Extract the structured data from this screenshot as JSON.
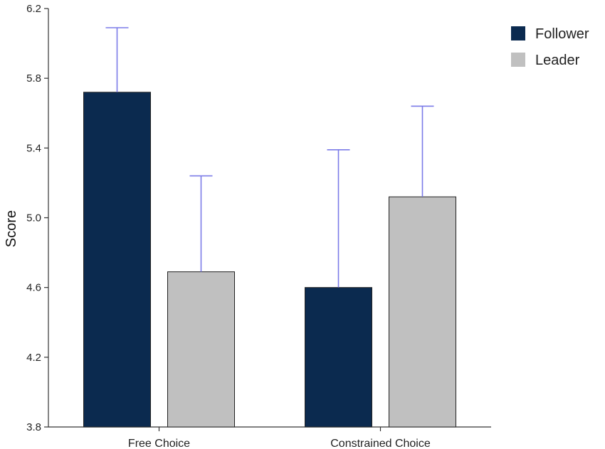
{
  "chart_data": {
    "type": "bar",
    "title": "",
    "xlabel": "",
    "ylabel": "Score",
    "ylim": [
      3.8,
      6.2
    ],
    "yticks": [
      "3.8",
      "4.2",
      "4.6",
      "5.0",
      "5.4",
      "5.8",
      "6.2"
    ],
    "categories": [
      "Free Choice",
      "Constrained Choice"
    ],
    "series": [
      {
        "name": "Follower",
        "color": "#0b2a4f",
        "values": [
          5.72,
          4.6
        ],
        "error_upper": [
          6.09,
          5.39
        ]
      },
      {
        "name": "Leader",
        "color": "#c0c0c0",
        "values": [
          4.69,
          5.12
        ],
        "error_upper": [
          5.24,
          5.64
        ]
      }
    ],
    "error_bar_color": "#7b7be8",
    "grid": false,
    "legend": "top-right"
  }
}
